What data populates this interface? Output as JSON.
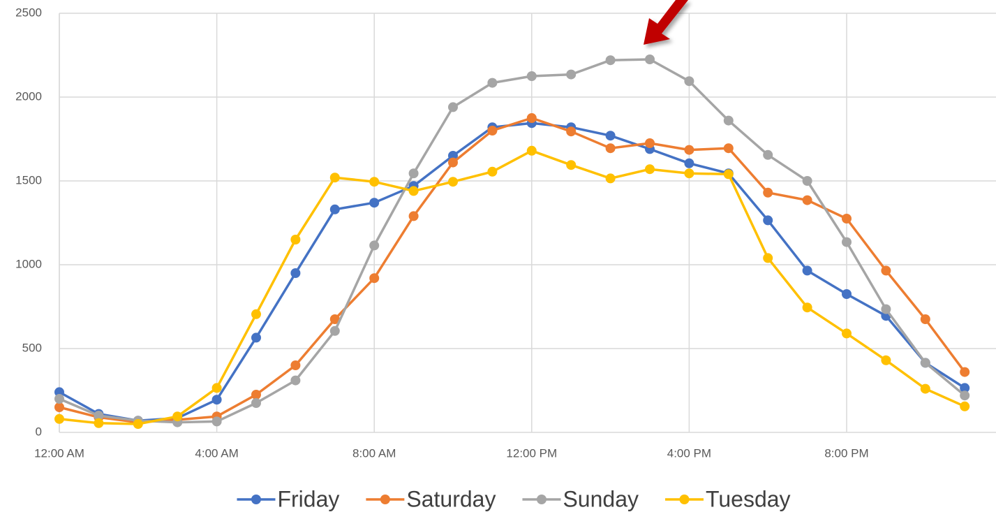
{
  "chart_data": {
    "type": "line",
    "categories": [
      "12:00 AM",
      null,
      null,
      null,
      "4:00 AM",
      null,
      null,
      null,
      "8:00 AM",
      null,
      null,
      null,
      "12:00 PM",
      null,
      null,
      null,
      "4:00 PM",
      null,
      null,
      null,
      "8:00 PM",
      null,
      null,
      null
    ],
    "series": [
      {
        "name": "Friday",
        "color": "#4472c4",
        "values": [
          240,
          110,
          70,
          85,
          195,
          565,
          950,
          1330,
          1370,
          1470,
          1650,
          1820,
          1845,
          1820,
          1770,
          1690,
          1605,
          1545,
          1265,
          965,
          825,
          695,
          415,
          265
        ]
      },
      {
        "name": "Saturday",
        "color": "#ed7d31",
        "values": [
          150,
          90,
          60,
          75,
          95,
          225,
          400,
          675,
          920,
          1290,
          1610,
          1800,
          1875,
          1795,
          1695,
          1725,
          1685,
          1695,
          1430,
          1385,
          1275,
          965,
          675,
          360
        ]
      },
      {
        "name": "Sunday",
        "color": "#a5a5a5",
        "values": [
          200,
          100,
          70,
          60,
          65,
          175,
          310,
          605,
          1115,
          1545,
          1940,
          2085,
          2125,
          2135,
          2220,
          2225,
          2095,
          1860,
          1655,
          1500,
          1135,
          735,
          415,
          220
        ]
      },
      {
        "name": "Tuesday",
        "color": "#ffc000",
        "values": [
          80,
          55,
          50,
          95,
          265,
          705,
          1150,
          1520,
          1495,
          1440,
          1495,
          1555,
          1680,
          1595,
          1515,
          1570,
          1545,
          1540,
          1040,
          745,
          590,
          430,
          260,
          155
        ]
      }
    ],
    "ylim": [
      0,
      2500
    ],
    "yticks": [
      0,
      500,
      1000,
      1500,
      2000,
      2500
    ],
    "grid": true,
    "legend": "bottom"
  }
}
